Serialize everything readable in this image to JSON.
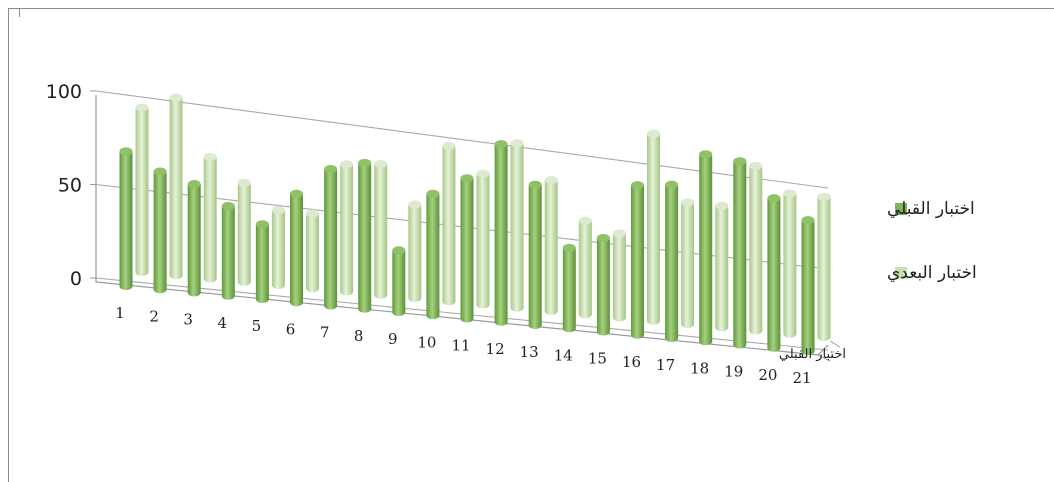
{
  "chart_data": {
    "type": "bar",
    "style": "3d-clustered-cylinder",
    "categories": [
      "1",
      "2",
      "3",
      "4",
      "5",
      "6",
      "7",
      "8",
      "9",
      "10",
      "11",
      "12",
      "13",
      "14",
      "15",
      "16",
      "17",
      "18",
      "19",
      "20",
      "21"
    ],
    "series": [
      {
        "name": "اختبار القبلي",
        "color": "#7fb35a",
        "values": [
          72,
          63,
          58,
          48,
          40,
          58,
          73,
          78,
          33,
          65,
          75,
          95,
          75,
          43,
          50,
          80,
          82,
          100,
          98,
          80,
          70
        ]
      },
      {
        "name": "اختبار البعدي",
        "color": "#c9e0ad",
        "values": [
          88,
          95,
          65,
          53,
          40,
          40,
          68,
          70,
          50,
          83,
          70,
          88,
          70,
          50,
          45,
          100,
          65,
          65,
          88,
          75,
          75
        ]
      }
    ],
    "ylim": [
      0,
      100
    ],
    "ytick_labels": [
      "0",
      "50",
      "100"
    ],
    "depth_axis_label": "اختبار القبلي",
    "legend_position": "right",
    "grid": true
  }
}
